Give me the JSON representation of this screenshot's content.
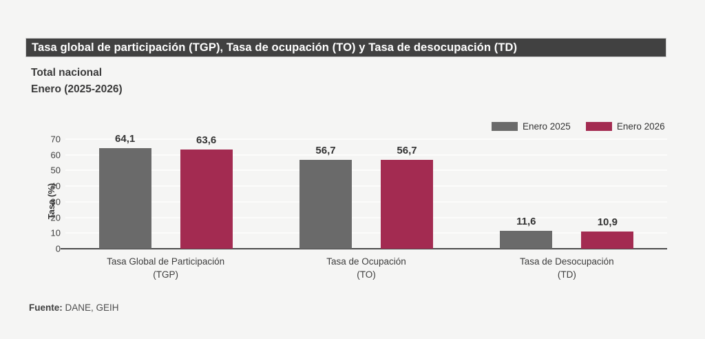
{
  "header": {
    "title": "Tasa global de participación (TGP), Tasa de ocupación (TO) y Tasa de desocupación (TD)",
    "subtitle_line1": "Total nacional",
    "subtitle_line2": "Enero (2025-2026)"
  },
  "footer": {
    "source_label": "Fuente:",
    "source_value": " DANE, GEIH"
  },
  "colors": {
    "series_2025": "#6a6a6a",
    "series_2026": "#a32b51",
    "title_bar_bg": "#414141",
    "background": "#f5f5f4",
    "axis": "#4a4a4a",
    "gridline": "#fcfcfb"
  },
  "chart_data": {
    "type": "bar",
    "title": "Tasa global de participación (TGP), Tasa de ocupación (TO) y Tasa de desocupación (TD)",
    "subtitle": "Total nacional — Enero (2025-2026)",
    "categories": [
      {
        "line1": "Tasa Global de Participación",
        "line2": "(TGP)"
      },
      {
        "line1": "Tasa de Ocupación",
        "line2": "(TO)"
      },
      {
        "line1": "Tasa de Desocupación",
        "line2": "(TD)"
      }
    ],
    "series": [
      {
        "name": "Enero  2025",
        "color": "#6a6a6a",
        "values": [
          64.1,
          56.7,
          11.6
        ],
        "labels": [
          "64,1",
          "56,7",
          "11,6"
        ]
      },
      {
        "name": "Enero  2026",
        "color": "#a32b51",
        "values": [
          63.6,
          56.7,
          10.9
        ],
        "labels": [
          "63,6",
          "56,7",
          "10,9"
        ]
      }
    ],
    "xlabel": "",
    "ylabel": "Tasa (%)",
    "ylim": [
      0,
      70
    ],
    "yticks": [
      0,
      10,
      20,
      30,
      40,
      50,
      60,
      70
    ],
    "grid": true,
    "legend_position": "top-right",
    "value_labels_shown": true,
    "decimal_format": "comma"
  }
}
